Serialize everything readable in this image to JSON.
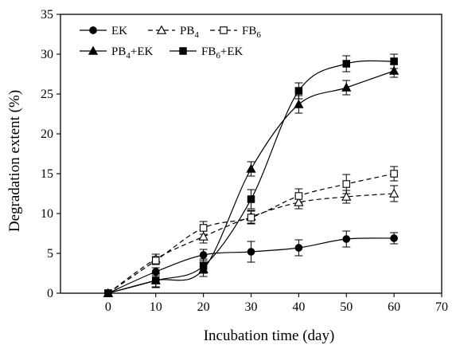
{
  "chart_data": {
    "type": "line",
    "xlabel": "Incubation time (day)",
    "ylabel": "Degradation extent (%)",
    "xlim": [
      -10,
      70
    ],
    "ylim": [
      0,
      35
    ],
    "xticks": [
      0,
      10,
      20,
      30,
      40,
      50,
      60,
      70
    ],
    "yticks": [
      0,
      5,
      10,
      15,
      20,
      25,
      30,
      35
    ],
    "grid": false,
    "legend_position": "top-left",
    "x": [
      0,
      10,
      20,
      30,
      40,
      50,
      60
    ],
    "series": [
      {
        "name": "EK",
        "name_sub": "",
        "name_suffix": "",
        "marker": "filled-circle",
        "line": "solid",
        "values": [
          0,
          2.7,
          4.8,
          5.2,
          5.7,
          6.8,
          6.9
        ],
        "errors": [
          0,
          0.5,
          0.7,
          1.3,
          1.0,
          1.0,
          0.7
        ]
      },
      {
        "name": "PB",
        "name_sub": "4",
        "name_suffix": "",
        "marker": "open-triangle",
        "line": "dashed",
        "values": [
          0,
          4.3,
          7.1,
          9.6,
          11.4,
          12.1,
          12.5
        ],
        "errors": [
          0,
          0.6,
          0.8,
          0.8,
          0.8,
          0.8,
          1.0
        ]
      },
      {
        "name": "FB",
        "name_sub": "6",
        "name_suffix": "",
        "marker": "open-square",
        "line": "dashed",
        "values": [
          0,
          4.1,
          8.2,
          9.5,
          12.2,
          13.7,
          15.0
        ],
        "errors": [
          0,
          0.5,
          0.8,
          0.8,
          0.9,
          1.2,
          0.9
        ]
      },
      {
        "name": "PB",
        "name_sub": "4",
        "name_suffix": "+EK",
        "marker": "filled-triangle",
        "line": "solid",
        "values": [
          0,
          1.6,
          3.0,
          15.6,
          23.7,
          25.8,
          27.9
        ],
        "errors": [
          0,
          0.8,
          0.9,
          0.9,
          1.1,
          0.9,
          0.8
        ]
      },
      {
        "name": "FB",
        "name_sub": "6",
        "name_suffix": "+EK",
        "marker": "filled-square",
        "line": "solid",
        "values": [
          0,
          1.6,
          3.4,
          11.8,
          25.4,
          28.8,
          29.1
        ],
        "errors": [
          0,
          0.9,
          0.9,
          1.2,
          1.0,
          1.0,
          0.9
        ]
      }
    ]
  }
}
